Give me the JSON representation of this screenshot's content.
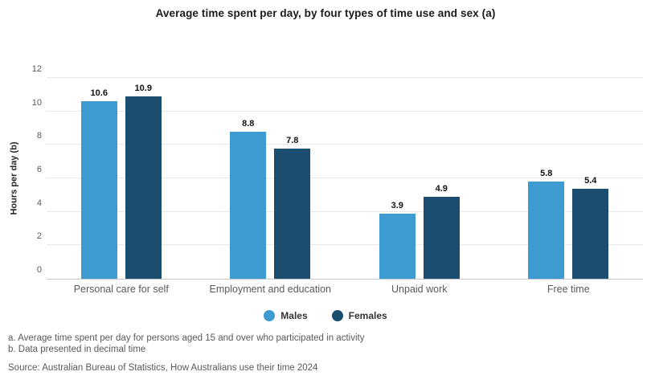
{
  "chart_data": {
    "type": "bar",
    "title": "Average time spent per day, by four types of time use and sex (a)",
    "categories": [
      "Personal care for self",
      "Employment and education",
      "Unpaid work",
      "Free time"
    ],
    "series": [
      {
        "name": "Males",
        "color": "#3D9BD2",
        "values": [
          10.6,
          8.8,
          3.9,
          5.8
        ]
      },
      {
        "name": "Females",
        "color": "#1B4D70",
        "values": [
          10.9,
          7.8,
          4.9,
          5.4
        ]
      }
    ],
    "xlabel": "",
    "ylabel": "Hours per day (b)",
    "ylim": [
      0,
      12
    ],
    "ytick_step": 2,
    "grid": true,
    "legend_position": "bottom",
    "data_labels": true
  },
  "colors": {
    "males": "#3D9BD2",
    "females": "#1B4D70",
    "gridline": "#e9e9e9",
    "axis_line": "#c8c8c8",
    "tick_text": "#595959"
  },
  "footnotes": [
    "a. Average time spent per day for persons aged 15 and over who participated in activity",
    "b. Data presented in decimal time"
  ],
  "source": "Source: Australian Bureau of Statistics, How Australians use their time 2024"
}
